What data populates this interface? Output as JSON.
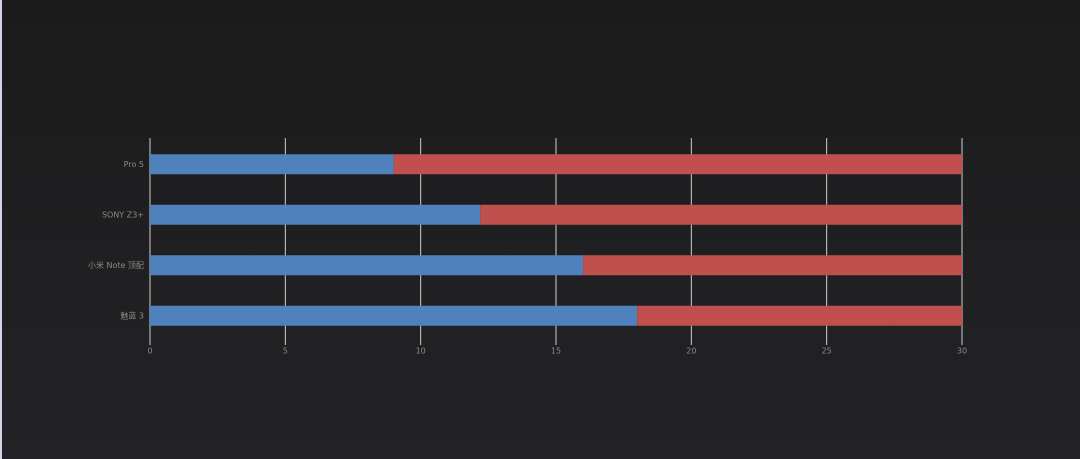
{
  "chart_data": {
    "type": "stacked_barh",
    "categories": [
      "Pro 5",
      "SONY Z3+",
      "小米 Note 顶配",
      "魅蓝 3"
    ],
    "series": [
      {
        "color": "#4f81bd",
        "values": [
          9,
          12.2,
          16,
          18
        ]
      },
      {
        "color": "#c0504d",
        "values": [
          21,
          17.8,
          14,
          12
        ]
      }
    ],
    "xlim": [
      0,
      30
    ],
    "xticks": [
      0,
      5,
      10,
      15,
      20,
      25,
      30
    ],
    "grid": true
  }
}
